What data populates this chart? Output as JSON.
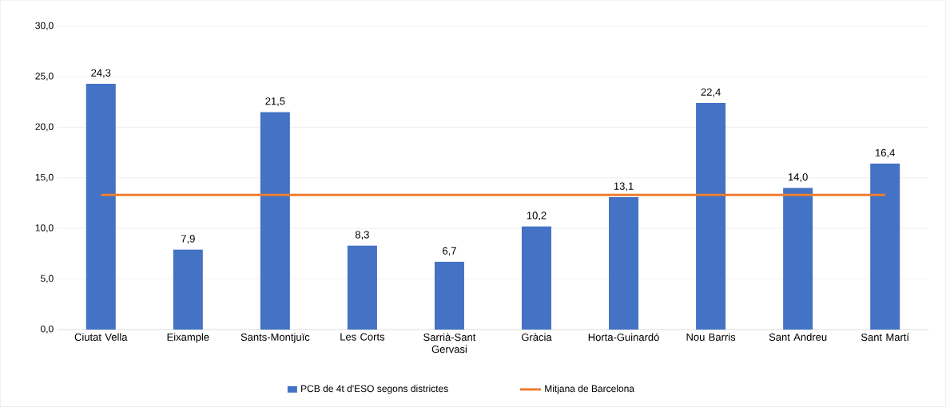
{
  "chart_data": {
    "type": "bar",
    "categories": [
      "Ciutat Vella",
      "Eixample",
      "Sants-Montjuïc",
      "Les Corts",
      "Sarrià-Sant Gervasi",
      "Gràcia",
      "Horta-Guinardó",
      "Nou Barris",
      "Sant Andreu",
      "Sant Martí"
    ],
    "series": [
      {
        "name": "PCB de 4t d'ESO segons districtes",
        "color": "#4472c4",
        "values": [
          24.3,
          7.9,
          21.5,
          8.3,
          6.7,
          10.2,
          13.1,
          22.4,
          14.0,
          16.4
        ],
        "value_labels": [
          "24,3",
          "7,9",
          "21,5",
          "8,3",
          "6,7",
          "10,2",
          "13,1",
          "22,4",
          "14,0",
          "16,4"
        ]
      },
      {
        "name": "Mitjana de Barcelona",
        "type": "line",
        "color": "#ed7d31",
        "values": [
          13.3,
          13.3,
          13.3,
          13.3,
          13.3,
          13.3,
          13.3,
          13.3,
          13.3,
          13.3
        ]
      }
    ],
    "ylim": [
      0,
      30
    ],
    "yticks": [
      {
        "value": 0,
        "label": "0,0"
      },
      {
        "value": 5,
        "label": "5,0"
      },
      {
        "value": 10,
        "label": "10,0"
      },
      {
        "value": 15,
        "label": "15,0"
      },
      {
        "value": 20,
        "label": "20,0"
      },
      {
        "value": 25,
        "label": "25,0"
      },
      {
        "value": 30,
        "label": "30,0"
      }
    ],
    "grid": "y",
    "legend": "bottom"
  }
}
